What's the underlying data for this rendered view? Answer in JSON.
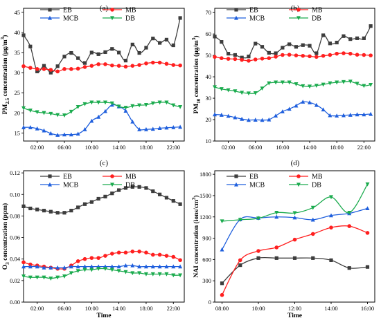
{
  "chart_data": [
    {
      "panel_label": "(a)",
      "type": "line",
      "ylabel_main": "PM",
      "ylabel_sub": "2.5",
      "ylabel_rest": " concentration (μg/m",
      "ylabel_sup": "3",
      "ylabel_close": ")",
      "xlabel": "",
      "x_axis": "time_of_day",
      "xticks": [
        "02:00",
        "06:00",
        "10:00",
        "14:00",
        "18:00",
        "22:00"
      ],
      "xtick_values": [
        2,
        6,
        10,
        14,
        18,
        22
      ],
      "xlim": [
        0,
        23.6
      ],
      "yticks": [
        15,
        20,
        25,
        30,
        35,
        40,
        45
      ],
      "ylim": [
        13,
        46
      ],
      "x": [
        0,
        1,
        2,
        3,
        4,
        5,
        6,
        7,
        8,
        9,
        10,
        11,
        12,
        13,
        14,
        15,
        16,
        17,
        18,
        19,
        20,
        21,
        22,
        23
      ],
      "series": [
        {
          "name": "EB",
          "color": "#3d3d3d",
          "marker": "square",
          "values": [
            39.3,
            36.5,
            30.3,
            31.7,
            30.0,
            31.6,
            34.0,
            34.9,
            33.6,
            32.4,
            35.0,
            34.6,
            35.1,
            35.9,
            35.0,
            33.0,
            37.0,
            34.9,
            36.2,
            38.5,
            37.4,
            38.2,
            36.8,
            43.6
          ]
        },
        {
          "name": "MB",
          "color": "#ff1f1f",
          "marker": "circle",
          "values": [
            31.6,
            31.2,
            30.9,
            30.9,
            30.7,
            30.3,
            30.9,
            30.9,
            31.0,
            31.4,
            31.7,
            32.1,
            32.1,
            31.8,
            31.7,
            31.5,
            31.7,
            31.9,
            32.3,
            32.5,
            32.5,
            32.2,
            31.9,
            31.8
          ]
        },
        {
          "name": "MCB",
          "color": "#1f5fdd",
          "marker": "triangle-up",
          "values": [
            16.4,
            16.4,
            16.1,
            15.6,
            14.9,
            14.5,
            14.6,
            14.6,
            14.8,
            15.9,
            18.0,
            19.0,
            20.4,
            22.0,
            21.6,
            20.5,
            17.8,
            15.9,
            15.9,
            16.0,
            16.2,
            16.3,
            16.4,
            16.5
          ]
        },
        {
          "name": "DB",
          "color": "#1bab4e",
          "marker": "triangle-down",
          "values": [
            21.2,
            20.6,
            20.2,
            20.0,
            19.8,
            19.5,
            19.4,
            20.3,
            21.5,
            22.2,
            22.6,
            22.6,
            22.6,
            22.4,
            21.6,
            21.3,
            21.7,
            21.9,
            22.0,
            22.4,
            22.6,
            22.6,
            21.9,
            21.5
          ]
        }
      ]
    },
    {
      "panel_label": "(b)",
      "type": "line",
      "ylabel_main": "PM",
      "ylabel_sub": "10",
      "ylabel_rest": " concentration (μg/m",
      "ylabel_sup": "3",
      "ylabel_close": ")",
      "xlabel": "",
      "x_axis": "time_of_day",
      "xticks": [
        "02:00",
        "06:00",
        "10:00",
        "14:00",
        "18:00",
        "22:00"
      ],
      "xtick_values": [
        2,
        6,
        10,
        14,
        18,
        22
      ],
      "xlim": [
        0,
        23.6
      ],
      "yticks": [
        10,
        20,
        30,
        40,
        50,
        60,
        70
      ],
      "ylim": [
        10,
        72
      ],
      "x": [
        0,
        1,
        2,
        3,
        4,
        5,
        6,
        7,
        8,
        9,
        10,
        11,
        12,
        13,
        14,
        15,
        16,
        17,
        18,
        19,
        20,
        21,
        22,
        23
      ],
      "series": [
        {
          "name": "EB",
          "color": "#3d3d3d",
          "marker": "square",
          "values": [
            58.8,
            56.3,
            50.8,
            50.2,
            49.0,
            49.5,
            55.5,
            54.0,
            51.2,
            51.0,
            53.6,
            55.2,
            54.0,
            54.8,
            54.5,
            51.0,
            59.4,
            55.6,
            56.0,
            59.0,
            57.6,
            58.0,
            58.0,
            63.7
          ]
        },
        {
          "name": "MB",
          "color": "#ff1f1f",
          "marker": "circle",
          "values": [
            49.3,
            48.7,
            48.4,
            48.3,
            47.9,
            47.5,
            48.1,
            48.5,
            48.7,
            49.4,
            50.2,
            50.3,
            50.0,
            49.8,
            49.6,
            49.3,
            49.8,
            50.2,
            50.8,
            51.0,
            50.8,
            50.3,
            50.2,
            50.0
          ]
        },
        {
          "name": "MCB",
          "color": "#1f5fdd",
          "marker": "triangle-up",
          "values": [
            22.4,
            22.2,
            21.7,
            21.0,
            20.3,
            19.8,
            19.9,
            19.8,
            20.0,
            21.8,
            23.8,
            25.0,
            26.5,
            28.3,
            28.0,
            26.8,
            24.7,
            22.0,
            21.8,
            22.0,
            22.2,
            22.4,
            22.4,
            22.6
          ]
        },
        {
          "name": "DB",
          "color": "#1bab4e",
          "marker": "triangle-down",
          "values": [
            35.2,
            34.3,
            33.8,
            33.3,
            32.6,
            32.3,
            32.4,
            34.6,
            37.0,
            37.4,
            37.4,
            37.4,
            36.6,
            35.7,
            35.5,
            35.9,
            36.4,
            37.0,
            37.4,
            37.6,
            37.8,
            36.8,
            35.8,
            36.3
          ]
        }
      ]
    },
    {
      "panel_label": "(c)",
      "type": "line",
      "ylabel_main": "O",
      "ylabel_sub": "3",
      "ylabel_rest": " concentration (ppm)",
      "ylabel_sup": "",
      "ylabel_close": "",
      "xlabel": "Time",
      "x_axis": "time_of_day",
      "xticks": [
        "02:00",
        "06:00",
        "10:00",
        "14:00",
        "18:00",
        "22:00"
      ],
      "xtick_values": [
        2,
        6,
        10,
        14,
        18,
        22
      ],
      "xlim": [
        0,
        23.6
      ],
      "yticks": [
        "0.00",
        "0.02",
        "0.04",
        "0.06",
        "0.08",
        "0.10",
        "0.12"
      ],
      "ytick_values": [
        0,
        0.02,
        0.04,
        0.06,
        0.08,
        0.1,
        0.12
      ],
      "ylim": [
        0,
        0.122
      ],
      "x": [
        0,
        1,
        2,
        3,
        4,
        5,
        6,
        7,
        8,
        9,
        10,
        11,
        12,
        13,
        14,
        15,
        16,
        17,
        18,
        19,
        20,
        21,
        22,
        23
      ],
      "series": [
        {
          "name": "EB",
          "color": "#3d3d3d",
          "marker": "square",
          "values": [
            0.089,
            0.087,
            0.086,
            0.085,
            0.084,
            0.083,
            0.083,
            0.085,
            0.088,
            0.091,
            0.093,
            0.096,
            0.098,
            0.101,
            0.104,
            0.106,
            0.107,
            0.107,
            0.106,
            0.103,
            0.1,
            0.097,
            0.094,
            0.091
          ]
        },
        {
          "name": "MB",
          "color": "#ff1f1f",
          "marker": "circle",
          "values": [
            0.037,
            0.035,
            0.034,
            0.033,
            0.032,
            0.031,
            0.031,
            0.034,
            0.038,
            0.04,
            0.041,
            0.041,
            0.043,
            0.045,
            0.046,
            0.046,
            0.047,
            0.047,
            0.046,
            0.044,
            0.044,
            0.043,
            0.042,
            0.039
          ]
        },
        {
          "name": "MCB",
          "color": "#1f5fdd",
          "marker": "triangle-up",
          "values": [
            0.033,
            0.033,
            0.033,
            0.032,
            0.032,
            0.032,
            0.032,
            0.033,
            0.033,
            0.033,
            0.033,
            0.033,
            0.033,
            0.033,
            0.033,
            0.034,
            0.034,
            0.033,
            0.033,
            0.033,
            0.033,
            0.033,
            0.033,
            0.033
          ]
        },
        {
          "name": "DB",
          "color": "#1bab4e",
          "marker": "triangle-down",
          "values": [
            0.024,
            0.023,
            0.023,
            0.023,
            0.022,
            0.023,
            0.024,
            0.027,
            0.029,
            0.03,
            0.03,
            0.031,
            0.031,
            0.03,
            0.029,
            0.028,
            0.027,
            0.027,
            0.026,
            0.026,
            0.026,
            0.026,
            0.025,
            0.025
          ]
        }
      ]
    },
    {
      "panel_label": "(d)",
      "type": "line",
      "ylabel_main": "NAI concentration (ions/cm",
      "ylabel_sub": "",
      "ylabel_rest": "",
      "ylabel_sup": "3",
      "ylabel_close": ")",
      "xlabel": "Time",
      "x_axis": "time_of_day",
      "xticks": [
        "08:00",
        "10:00",
        "12:00",
        "14:00",
        "16:00"
      ],
      "xtick_values": [
        8,
        10,
        12,
        14,
        16
      ],
      "xlim": [
        7.6,
        16.4
      ],
      "yticks": [
        0,
        300,
        600,
        900,
        1200,
        1500,
        1800
      ],
      "ylim": [
        0,
        1850
      ],
      "x": [
        8,
        9,
        10,
        11,
        12,
        13,
        14,
        15,
        16
      ],
      "series": [
        {
          "name": "EB",
          "color": "#3d3d3d",
          "marker": "square",
          "values": [
            265,
            520,
            620,
            620,
            620,
            620,
            590,
            480,
            495
          ]
        },
        {
          "name": "MB",
          "color": "#ff1f1f",
          "marker": "circle",
          "values": [
            100,
            590,
            720,
            770,
            880,
            960,
            1050,
            1070,
            975
          ]
        },
        {
          "name": "MCB",
          "color": "#1f5fdd",
          "marker": "triangle-up",
          "values": [
            740,
            1165,
            1185,
            1200,
            1190,
            1160,
            1220,
            1250,
            1320
          ]
        },
        {
          "name": "DB",
          "color": "#1bab4e",
          "marker": "triangle-down",
          "values": [
            1140,
            1160,
            1180,
            1260,
            1255,
            1330,
            1480,
            1260,
            1660
          ]
        }
      ]
    }
  ]
}
